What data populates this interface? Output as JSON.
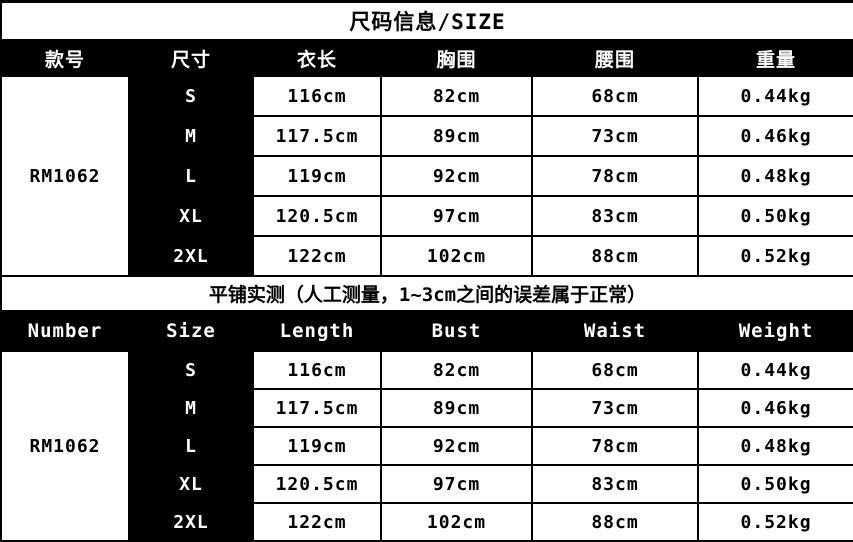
{
  "title": "尺码信息/SIZE",
  "note": "平铺实测（人工测量，1~3cm之间的误差属于正常）",
  "colors": {
    "header_bg": "#000000",
    "header_text": "#ffffff",
    "cell_bg": "#ffffff",
    "cell_text": "#000000",
    "border": "#000000"
  },
  "sections": [
    {
      "headers": [
        "款号",
        "尺寸",
        "衣长",
        "胸围",
        "腰围",
        "重量"
      ],
      "model": "RM1062",
      "rows": [
        [
          "S",
          "116cm",
          "82cm",
          "68cm",
          "0.44kg"
        ],
        [
          "M",
          "117.5cm",
          "89cm",
          "73cm",
          "0.46kg"
        ],
        [
          "L",
          "119cm",
          "92cm",
          "78cm",
          "0.48kg"
        ],
        [
          "XL",
          "120.5cm",
          "97cm",
          "83cm",
          "0.50kg"
        ],
        [
          "2XL",
          "122cm",
          "102cm",
          "88cm",
          "0.52kg"
        ]
      ]
    },
    {
      "headers": [
        "Number",
        "Size",
        "Length",
        "Bust",
        "Waist",
        "Weight"
      ],
      "model": "RM1062",
      "rows": [
        [
          "S",
          "116cm",
          "82cm",
          "68cm",
          "0.44kg"
        ],
        [
          "M",
          "117.5cm",
          "89cm",
          "73cm",
          "0.46kg"
        ],
        [
          "L",
          "119cm",
          "92cm",
          "78cm",
          "0.48kg"
        ],
        [
          "XL",
          "120.5cm",
          "97cm",
          "83cm",
          "0.50kg"
        ],
        [
          "2XL",
          "122cm",
          "102cm",
          "88cm",
          "0.52kg"
        ]
      ]
    }
  ]
}
